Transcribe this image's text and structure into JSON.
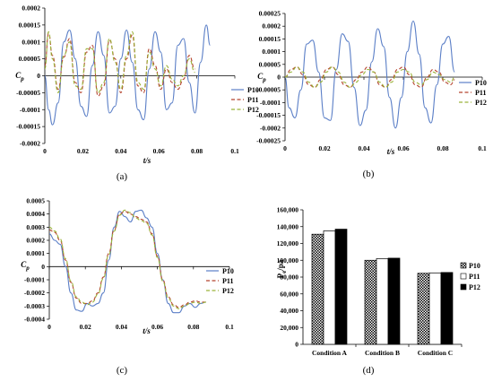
{
  "colors": {
    "P10": "#5b7fc7",
    "P11": "#b5442e",
    "P12": "#9bb33a"
  },
  "panel_labels": [
    "(a)",
    "(b)",
    "(c)",
    "(d)"
  ],
  "chart_data": [
    {
      "id": "a",
      "type": "line",
      "ylabel": "C",
      "ylabel_sub": "p",
      "xlabel": "t/s",
      "xlim": [
        0,
        0.1
      ],
      "ylim": [
        -0.0002,
        0.0002
      ],
      "x_ticks": [
        "0",
        "0.02",
        "0.04",
        "0.06",
        "0.08",
        "0.1"
      ],
      "y_ticks": [
        "-0.0002",
        "-0.00015",
        "-0.0001",
        "-0.00005",
        "0",
        "0.00005",
        "0.0001",
        "0.00015",
        "0.0002"
      ],
      "series": [
        {
          "name": "P10",
          "style": "solid",
          "x": [
            0,
            0.002,
            0.004,
            0.007,
            0.01,
            0.013,
            0.016,
            0.019,
            0.022,
            0.025,
            0.028,
            0.031,
            0.034,
            0.037,
            0.04,
            0.043,
            0.046,
            0.049,
            0.052,
            0.055,
            0.058,
            0.061,
            0.064,
            0.067,
            0.07,
            0.073,
            0.076,
            0.079,
            0.082,
            0.085,
            0.087
          ],
          "y": [
            0,
            -0.0001,
            -0.000145,
            -8e-05,
            0.0001,
            0.000135,
            5e-05,
            -9e-05,
            -0.00012,
            3e-05,
            0.00013,
            6e-05,
            -0.00011,
            -9e-05,
            5e-05,
            0.000135,
            4e-05,
            -0.0001,
            -0.00013,
            2e-05,
            0.00013,
            7e-05,
            -0.0001,
            -8e-05,
            9e-05,
            0.00011,
            -2e-05,
            -0.00011,
            4e-05,
            0.00015,
            9e-05
          ]
        },
        {
          "name": "P11",
          "style": "dashed",
          "x": [
            0,
            0.002,
            0.004,
            0.007,
            0.01,
            0.013,
            0.016,
            0.019,
            0.022,
            0.025,
            0.028,
            0.031,
            0.034,
            0.037,
            0.04,
            0.043,
            0.046,
            0.049,
            0.052,
            0.055,
            0.058,
            0.061,
            0.064,
            0.067,
            0.07,
            0.073,
            0.076,
            0.079
          ],
          "y": [
            3e-05,
            0.000125,
            6e-05,
            -4e-05,
            5.5e-05,
            0.00011,
            -2e-05,
            -5e-05,
            7e-05,
            9e-05,
            -6e-05,
            -3e-05,
            0.000105,
            5e-05,
            -5e-05,
            5e-05,
            0.00012,
            -3e-05,
            -5e-05,
            8e-05,
            3e-05,
            -4e-05,
            2e-05,
            -2e-05,
            -4e-05,
            -1e-05,
            6e-05,
            2e-05
          ]
        },
        {
          "name": "P12",
          "style": "dashed",
          "x": [
            0,
            0.002,
            0.004,
            0.007,
            0.01,
            0.013,
            0.016,
            0.019,
            0.022,
            0.025,
            0.028,
            0.031,
            0.034,
            0.037,
            0.04,
            0.043,
            0.046,
            0.049,
            0.052,
            0.055,
            0.058,
            0.061,
            0.064,
            0.067,
            0.07,
            0.073,
            0.076,
            0.079
          ],
          "y": [
            2e-05,
            0.00013,
            5e-05,
            -5e-05,
            6e-05,
            0.0001,
            -3e-05,
            -4e-05,
            8e-05,
            8e-05,
            -5e-05,
            -2e-05,
            0.00011,
            4e-05,
            -4e-05,
            6e-05,
            0.00013,
            -2e-05,
            -4e-05,
            7e-05,
            2e-05,
            -3e-05,
            3e-05,
            -1e-05,
            -3e-05,
            0,
            5e-05,
            1e-05
          ]
        }
      ]
    },
    {
      "id": "b",
      "type": "line",
      "ylabel": "C",
      "ylabel_sub": "p",
      "xlabel": "t/s",
      "xlim": [
        0,
        0.1
      ],
      "ylim": [
        -0.00025,
        0.00025
      ],
      "x_ticks": [
        "0",
        "0.02",
        "0.04",
        "0.06",
        "0.08",
        "0.1"
      ],
      "y_ticks": [
        "-0.00025",
        "-0.0002",
        "-0.00015",
        "-0.0001",
        "-0.00005",
        "0",
        "0.00005",
        "0.0001",
        "0.00015",
        "0.0002",
        "0.00025"
      ],
      "series": [
        {
          "name": "P10",
          "style": "solid",
          "x": [
            0,
            0.002,
            0.005,
            0.008,
            0.011,
            0.014,
            0.017,
            0.02,
            0.023,
            0.026,
            0.029,
            0.032,
            0.035,
            0.038,
            0.041,
            0.044,
            0.047,
            0.05,
            0.053,
            0.056,
            0.059,
            0.062,
            0.065,
            0.068,
            0.071,
            0.074,
            0.077,
            0.08,
            0.083,
            0.086
          ],
          "y": [
            0,
            -0.00012,
            -0.00016,
            -5e-05,
            0.00013,
            0.000145,
            2e-05,
            -0.00016,
            -0.00017,
            3e-05,
            0.00017,
            0.00014,
            -4e-05,
            -0.00019,
            -0.00013,
            6e-05,
            0.00019,
            0.00012,
            -8e-05,
            -0.0002,
            -8e-05,
            0.0001,
            0.00022,
            9e-05,
            -0.00012,
            -0.00018,
            -3e-05,
            0.00013,
            0.00016,
            2e-05
          ]
        },
        {
          "name": "P11",
          "style": "dashed",
          "x": [
            0,
            0.003,
            0.006,
            0.009,
            0.012,
            0.015,
            0.018,
            0.021,
            0.024,
            0.027,
            0.03,
            0.033,
            0.036,
            0.039,
            0.042,
            0.045,
            0.048,
            0.051,
            0.054,
            0.057,
            0.06,
            0.063,
            0.066,
            0.069,
            0.072,
            0.075,
            0.078,
            0.081,
            0.084,
            0.086
          ],
          "y": [
            0,
            3e-05,
            4e-05,
            1e-05,
            -3e-05,
            -4e-05,
            -1e-05,
            3e-05,
            4e-05,
            1e-05,
            -3e-05,
            -4e-05,
            -1e-05,
            2e-05,
            4e-05,
            2e-05,
            -3e-05,
            -4e-05,
            -1e-05,
            3e-05,
            4e-05,
            1e-05,
            -3e-05,
            -4e-05,
            0,
            3e-05,
            2e-05,
            -2e-05,
            -3e-05,
            -1e-05
          ]
        },
        {
          "name": "P12",
          "style": "dashed",
          "x": [
            0,
            0.003,
            0.006,
            0.009,
            0.012,
            0.015,
            0.018,
            0.021,
            0.024,
            0.027,
            0.03,
            0.033,
            0.036,
            0.039,
            0.042,
            0.045,
            0.048,
            0.051,
            0.054,
            0.057,
            0.06,
            0.063,
            0.066,
            0.069,
            0.072,
            0.075,
            0.078,
            0.081,
            0.084,
            0.086
          ],
          "y": [
            0,
            2e-05,
            4e-05,
            2e-05,
            -2e-05,
            -4e-05,
            -2e-05,
            2e-05,
            4e-05,
            2e-05,
            -2e-05,
            -4e-05,
            -2e-05,
            1e-05,
            3e-05,
            2e-05,
            -2e-05,
            -4e-05,
            -2e-05,
            2e-05,
            3e-05,
            2e-05,
            -2e-05,
            -3e-05,
            -1e-05,
            2e-05,
            1e-05,
            -1e-05,
            -2e-05,
            0
          ]
        }
      ]
    },
    {
      "id": "c",
      "type": "line",
      "ylabel": "C",
      "ylabel_sub": "p",
      "xlabel": "t/s",
      "xlim": [
        0,
        0.1
      ],
      "ylim": [
        -0.0004,
        0.0005
      ],
      "x_ticks": [
        "0",
        "0.02",
        "0.04",
        "0.06",
        "0.08",
        "0.1"
      ],
      "y_ticks": [
        "-0.0004",
        "-0.0003",
        "-0.0002",
        "-0.0001",
        "0",
        "0.0001",
        "0.0002",
        "0.0003",
        "0.0004",
        "0.0005"
      ],
      "series": [
        {
          "name": "P10",
          "style": "solid",
          "x": [
            0,
            0.003,
            0.006,
            0.009,
            0.012,
            0.015,
            0.018,
            0.021,
            0.024,
            0.027,
            0.03,
            0.033,
            0.036,
            0.039,
            0.042,
            0.045,
            0.048,
            0.051,
            0.054,
            0.057,
            0.06,
            0.063,
            0.066,
            0.069,
            0.072,
            0.075,
            0.078,
            0.081,
            0.084,
            0.087
          ],
          "y": [
            0.00025,
            0.0002,
            0.00017,
            0.0,
            -0.0002,
            -0.00033,
            -0.00034,
            -0.00028,
            -0.0003,
            -0.00028,
            -0.0002,
            5e-05,
            0.0003,
            0.00042,
            0.00038,
            0.00034,
            0.00042,
            0.00043,
            0.00037,
            0.0003,
            0.0001,
            -0.0001,
            -0.00028,
            -0.00035,
            -0.00035,
            -0.0003,
            -0.00028,
            -0.00031,
            -0.00028,
            -0.00027
          ]
        },
        {
          "name": "P11",
          "style": "dashed",
          "x": [
            0,
            0.003,
            0.006,
            0.009,
            0.012,
            0.015,
            0.018,
            0.021,
            0.024,
            0.027,
            0.03,
            0.033,
            0.036,
            0.039,
            0.042,
            0.045,
            0.048,
            0.051,
            0.054,
            0.057,
            0.06,
            0.063,
            0.066,
            0.069,
            0.072,
            0.075,
            0.078,
            0.081,
            0.084,
            0.087
          ],
          "y": [
            0.00028,
            0.00026,
            0.0002,
            5e-05,
            -0.00012,
            -0.00024,
            -0.00028,
            -0.00028,
            -0.00026,
            -0.0002,
            -8e-05,
            0.0001,
            0.00028,
            0.0004,
            0.00042,
            0.0004,
            0.00038,
            0.00036,
            0.00034,
            0.00025,
            8e-05,
            -0.0001,
            -0.00023,
            -0.00029,
            -0.00031,
            -0.00029,
            -0.00027,
            -0.00026,
            -0.00027,
            -0.00027
          ]
        },
        {
          "name": "P12",
          "style": "dashed",
          "x": [
            0,
            0.003,
            0.006,
            0.009,
            0.012,
            0.015,
            0.018,
            0.021,
            0.024,
            0.027,
            0.03,
            0.033,
            0.036,
            0.039,
            0.042,
            0.045,
            0.048,
            0.051,
            0.054,
            0.057,
            0.06,
            0.063,
            0.066,
            0.069,
            0.072,
            0.075,
            0.078,
            0.081,
            0.084,
            0.087
          ],
          "y": [
            0.0003,
            0.00027,
            0.00021,
            6e-05,
            -0.00011,
            -0.00023,
            -0.00027,
            -0.00029,
            -0.00027,
            -0.00021,
            -9e-05,
            9e-05,
            0.00027,
            0.00039,
            0.00043,
            0.00041,
            0.00037,
            0.00035,
            0.00033,
            0.00024,
            7e-05,
            -0.00011,
            -0.00024,
            -0.0003,
            -0.00032,
            -0.0003,
            -0.00028,
            -0.00027,
            -0.00028,
            -0.00027
          ]
        }
      ]
    },
    {
      "id": "d",
      "type": "bar",
      "ylabel": "P",
      "ylabel_sub": "e",
      "ylabel_suffix": "/pa",
      "categories": [
        "Condition A",
        "Condition B",
        "Condition C"
      ],
      "ylim": [
        0,
        160000
      ],
      "y_ticks": [
        "0",
        "20,000",
        "40,000",
        "60,000",
        "80,000",
        "100,000",
        "120,000",
        "140,000",
        "160,000"
      ],
      "series": [
        {
          "name": "P10",
          "fill": "checker",
          "values": [
            131000,
            100000,
            84500
          ]
        },
        {
          "name": "P11",
          "fill": "white",
          "values": [
            135000,
            102000,
            85000
          ]
        },
        {
          "name": "P12",
          "fill": "black",
          "values": [
            137000,
            102500,
            85500
          ]
        }
      ]
    }
  ]
}
